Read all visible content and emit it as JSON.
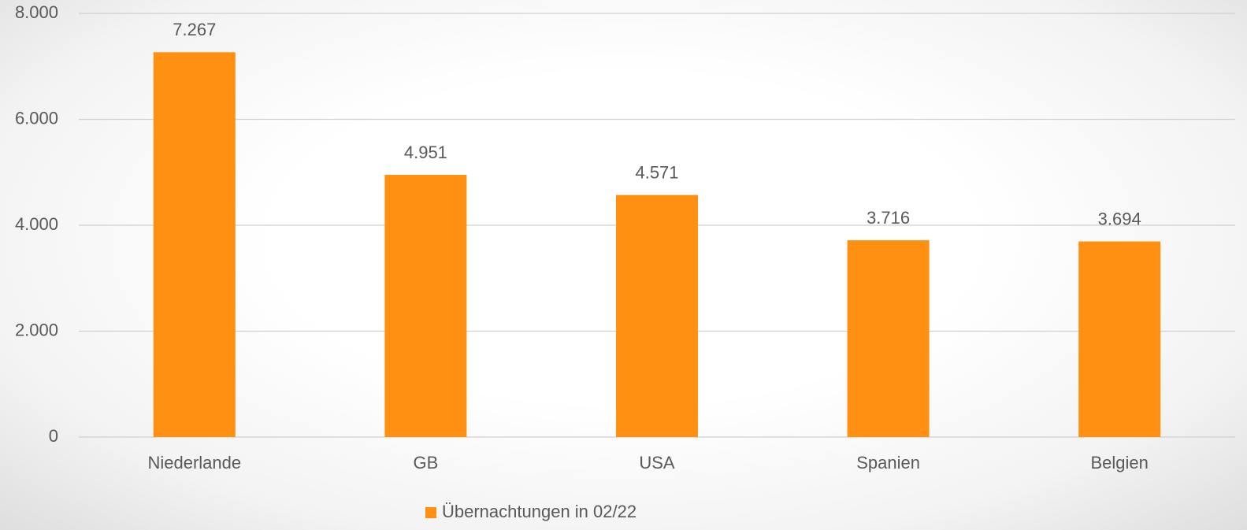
{
  "chart_data": {
    "type": "bar",
    "categories": [
      "Niederlande",
      "GB",
      "USA",
      "Spanien",
      "Belgien"
    ],
    "series": [
      {
        "name": "Übernachtungen in 02/22",
        "color": "#ff9012",
        "values": [
          7267,
          4951,
          4571,
          3716,
          3694
        ],
        "value_labels": [
          "7.267",
          "4.951",
          "4.571",
          "3.716",
          "3.694"
        ]
      }
    ],
    "ylim": [
      0,
      8000
    ],
    "yticks": [
      0,
      {
        "value": 2000,
        "label": "2.000"
      },
      {
        "value": 4000,
        "label": "4.000"
      },
      {
        "value": 6000,
        "label": "6.000"
      },
      {
        "value": 8000,
        "label": "8.000"
      }
    ],
    "grid": true,
    "legend": "bottom"
  }
}
